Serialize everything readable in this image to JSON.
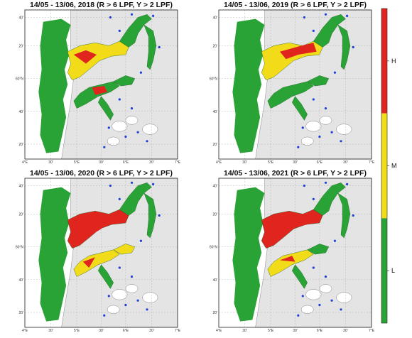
{
  "panels": [
    {
      "title": "14/05 - 13/06, 2018 (R > 6 LPF, Y > 2 LPF)",
      "variant": 2018
    },
    {
      "title": "14/05 - 13/06, 2019 (R > 6 LPF, Y > 2 LPF)",
      "variant": 2019
    },
    {
      "title": "14/05 - 13/06, 2020 (R > 6 LPF, Y > 2 LPF)",
      "variant": 2020
    },
    {
      "title": "14/05 - 13/06, 2021 (R > 6 LPF, Y > 2 LPF)",
      "variant": 2021
    }
  ],
  "axes": {
    "lon_labels": [
      "4°E",
      "30'",
      "5°E",
      "30'",
      "6°E",
      "30'",
      "7°E"
    ],
    "lat_labels": [
      "40'",
      "20'",
      "60°N",
      "40'",
      "20'"
    ]
  },
  "colorbar": {
    "levels": [
      {
        "label": "H",
        "color": "#e0251f"
      },
      {
        "label": "M",
        "color": "#f2dc1a"
      },
      {
        "label": "L",
        "color": "#2aa336"
      }
    ]
  },
  "colors": {
    "sea": "#ffffff",
    "land": "#e4e4e4",
    "coast": "#2aa336",
    "station": "#1f3fd6",
    "grid": "#aaaaaa"
  }
}
